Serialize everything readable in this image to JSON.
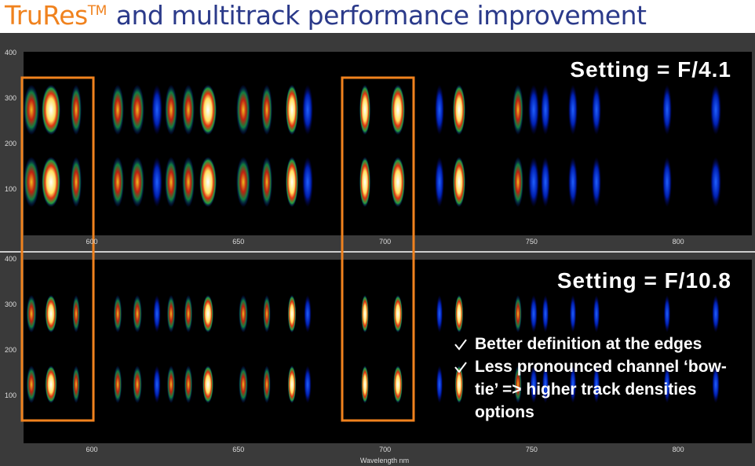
{
  "title": {
    "brand": "TruRes",
    "superscript": "TM",
    "text": "and multitrack performance improvement"
  },
  "panels": [
    {
      "setting": "Setting = F/4.1",
      "yticks": [
        "400",
        "300",
        "200",
        "100"
      ],
      "xticks": [
        "600",
        "650",
        "700",
        "750",
        "800"
      ]
    },
    {
      "setting": "Setting = F/10.8",
      "yticks": [
        "400",
        "300",
        "200",
        "100"
      ],
      "xticks": [
        "600",
        "650",
        "700",
        "750",
        "800"
      ]
    }
  ],
  "x_axis_label": "Wavelength nm",
  "bullets": [
    "Better definition at the edges",
    "Less pronounced channel ‘bow-tie’ => higher track densities options"
  ]
}
